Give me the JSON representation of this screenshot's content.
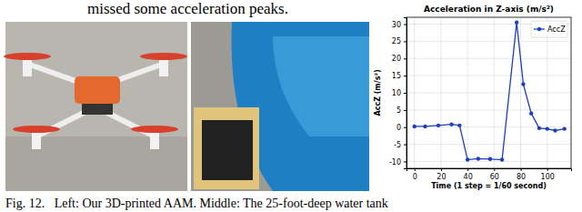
{
  "paper": {
    "top_text": "missed some acceleration peaks.",
    "caption": "Fig. 12.   Left: Our 3D-printed AAM. Middle: The 25-foot-deep water tank"
  },
  "chart_data": {
    "type": "line",
    "title": "Acceleration in Z-axis (m/s²)",
    "x_label": "Time (1 step = 1/60 second)",
    "y_label": "AccZ (m/s²)",
    "x": [
      0,
      8,
      18,
      28,
      34,
      40,
      48,
      57,
      66,
      77,
      82,
      88,
      94,
      100,
      106,
      113
    ],
    "series": [
      {
        "name": "AccZ",
        "color": "#1f3fbf",
        "marker": "o",
        "line_style": "solid",
        "values": [
          0.2,
          0.2,
          0.5,
          0.8,
          0.5,
          -9.5,
          -9.2,
          -9.3,
          -9.5,
          30.5,
          12.5,
          4,
          -0.3,
          -0.5,
          -1,
          -0.5
        ]
      }
    ],
    "xlim": [
      -6,
      118
    ],
    "xticks": [
      0,
      20,
      40,
      60,
      80,
      100
    ],
    "ylim": [
      -12,
      32
    ],
    "yticks": [
      -10,
      -5,
      0,
      5,
      10,
      15,
      20,
      25,
      30
    ],
    "grid": true,
    "legend": "upper right"
  }
}
